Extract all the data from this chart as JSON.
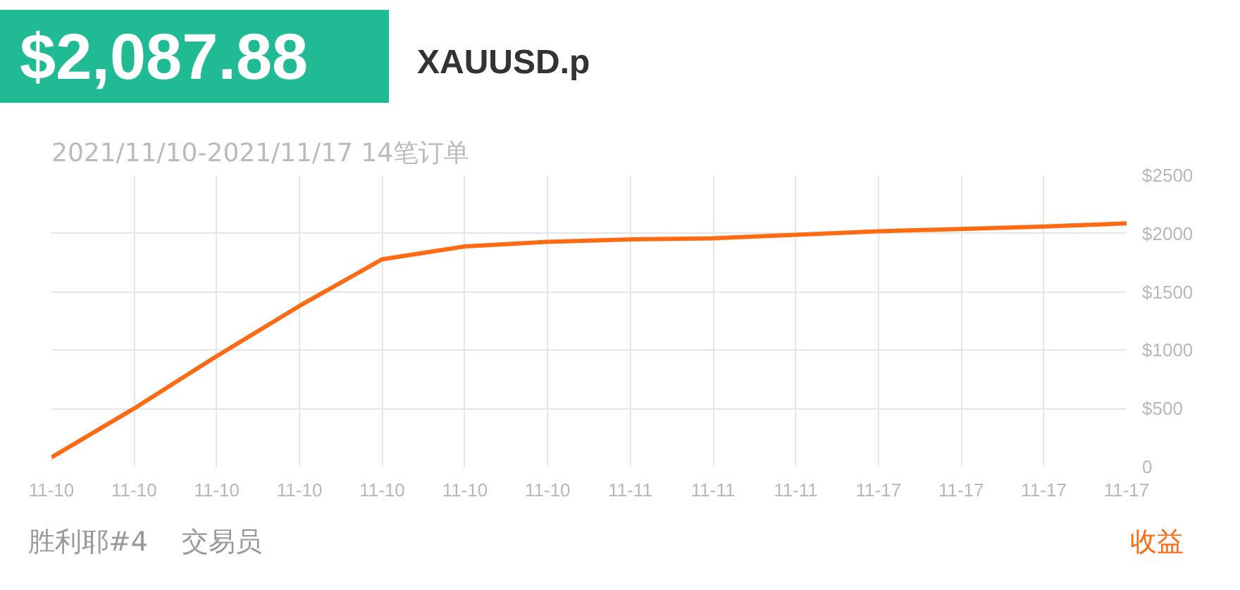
{
  "chart_data": {
    "type": "line",
    "title": "XAUUSD.p",
    "subtitle": "2021/11/10-2021/11/17 14笔订单",
    "annotations": [
      "$2,087.88",
      "胜利耶#4",
      "交易员",
      "收益"
    ],
    "categories": [
      "11-10",
      "11-10",
      "11-10",
      "11-10",
      "11-10",
      "11-10",
      "11-10",
      "11-11",
      "11-11",
      "11-11",
      "11-17",
      "11-17",
      "11-17",
      "11-17"
    ],
    "series": [
      {
        "color": "#ff6a13",
        "values": [
          80,
          500,
          950,
          1380,
          1780,
          1890,
          1930,
          1950,
          1960,
          1990,
          2020,
          2040,
          2060,
          2087.88
        ]
      }
    ],
    "ylim": [
      0,
      2500
    ],
    "yticks": [
      0,
      {
        "value": 500,
        "label": "$500"
      },
      {
        "value": 1000,
        "label": "$1000"
      },
      {
        "value": 1500,
        "label": "$1500"
      },
      {
        "value": 2000,
        "label": "$2000"
      },
      {
        "value": 2500,
        "label": "$2500"
      }
    ],
    "grid": true,
    "marker": "none",
    "line_style": "solid"
  }
}
